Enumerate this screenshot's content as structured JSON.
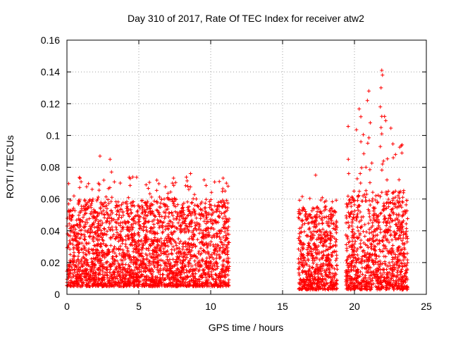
{
  "chart_data": {
    "type": "scatter",
    "title": "Day 310 of 2017, Rate Of TEC Index for receiver atw2",
    "xlabel": "GPS time / hours",
    "ylabel": "ROTI / TECUs",
    "xlim": [
      0,
      25
    ],
    "ylim": [
      0,
      0.16
    ],
    "xticks": [
      0,
      5,
      10,
      15,
      20,
      25
    ],
    "yticks": [
      0,
      0.02,
      0.04,
      0.06,
      0.08,
      0.1,
      0.12,
      0.14,
      0.16
    ],
    "xtick_labels": [
      "0",
      "5",
      "10",
      "15",
      "20",
      "25"
    ],
    "ytick_labels": [
      "0",
      "0.02",
      "0.04",
      "0.06",
      "0.08",
      "0.1",
      "0.12",
      "0.14",
      "0.16"
    ],
    "grid": true,
    "marker": "+",
    "color": "#ff0000",
    "segments": [
      {
        "x_start": 0.0,
        "x_end": 11.3,
        "baseline": 0.005,
        "typical_max": 0.06,
        "peak_max": 0.087
      },
      {
        "x_start": 16.1,
        "x_end": 18.8,
        "baseline": 0.003,
        "typical_max": 0.055,
        "peak_max": 0.075
      },
      {
        "x_start": 19.4,
        "x_end": 23.7,
        "baseline": 0.003,
        "typical_max": 0.065,
        "peak_max": 0.14
      }
    ],
    "notable_points": [
      {
        "x": 2.3,
        "y": 0.087
      },
      {
        "x": 3.0,
        "y": 0.085
      },
      {
        "x": 3.1,
        "y": 0.077
      },
      {
        "x": 8.6,
        "y": 0.076
      },
      {
        "x": 10.6,
        "y": 0.071
      },
      {
        "x": 17.3,
        "y": 0.075
      },
      {
        "x": 19.6,
        "y": 0.076
      },
      {
        "x": 20.4,
        "y": 0.076
      },
      {
        "x": 20.8,
        "y": 0.08
      },
      {
        "x": 21.0,
        "y": 0.128
      },
      {
        "x": 20.9,
        "y": 0.122
      },
      {
        "x": 21.1,
        "y": 0.108
      },
      {
        "x": 21.9,
        "y": 0.141
      },
      {
        "x": 21.95,
        "y": 0.138
      },
      {
        "x": 21.85,
        "y": 0.13
      },
      {
        "x": 21.8,
        "y": 0.118
      },
      {
        "x": 21.9,
        "y": 0.112
      },
      {
        "x": 21.85,
        "y": 0.105
      },
      {
        "x": 21.9,
        "y": 0.101
      },
      {
        "x": 21.8,
        "y": 0.093
      },
      {
        "x": 21.95,
        "y": 0.082
      },
      {
        "x": 22.7,
        "y": 0.086
      },
      {
        "x": 23.3,
        "y": 0.089
      }
    ]
  }
}
